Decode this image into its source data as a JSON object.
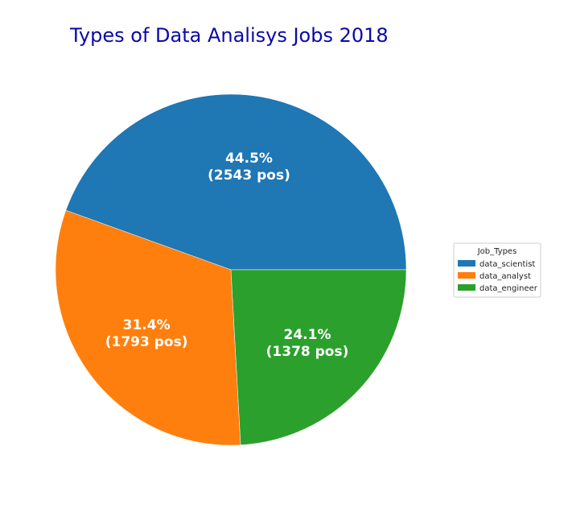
{
  "chart_data": {
    "type": "pie",
    "title": "Types of Data Analisys Jobs 2018",
    "slices": [
      {
        "name": "data_scientist",
        "value": 2543,
        "percent": "44.5%",
        "count_label": "(2543 pos)",
        "color": "#1f77b4"
      },
      {
        "name": "data_analyst",
        "value": 1793,
        "percent": "31.4%",
        "count_label": "(1793 pos)",
        "color": "#ff7f0e"
      },
      {
        "name": "data_engineer",
        "value": 1378,
        "percent": "24.1%",
        "count_label": "(1378 pos)",
        "color": "#2ca02c"
      }
    ],
    "start_angle_deg": 0,
    "direction": "counterclockwise",
    "legend": {
      "title": "Job_Types",
      "placement": "right"
    },
    "title_color": "#0a0aa6"
  }
}
